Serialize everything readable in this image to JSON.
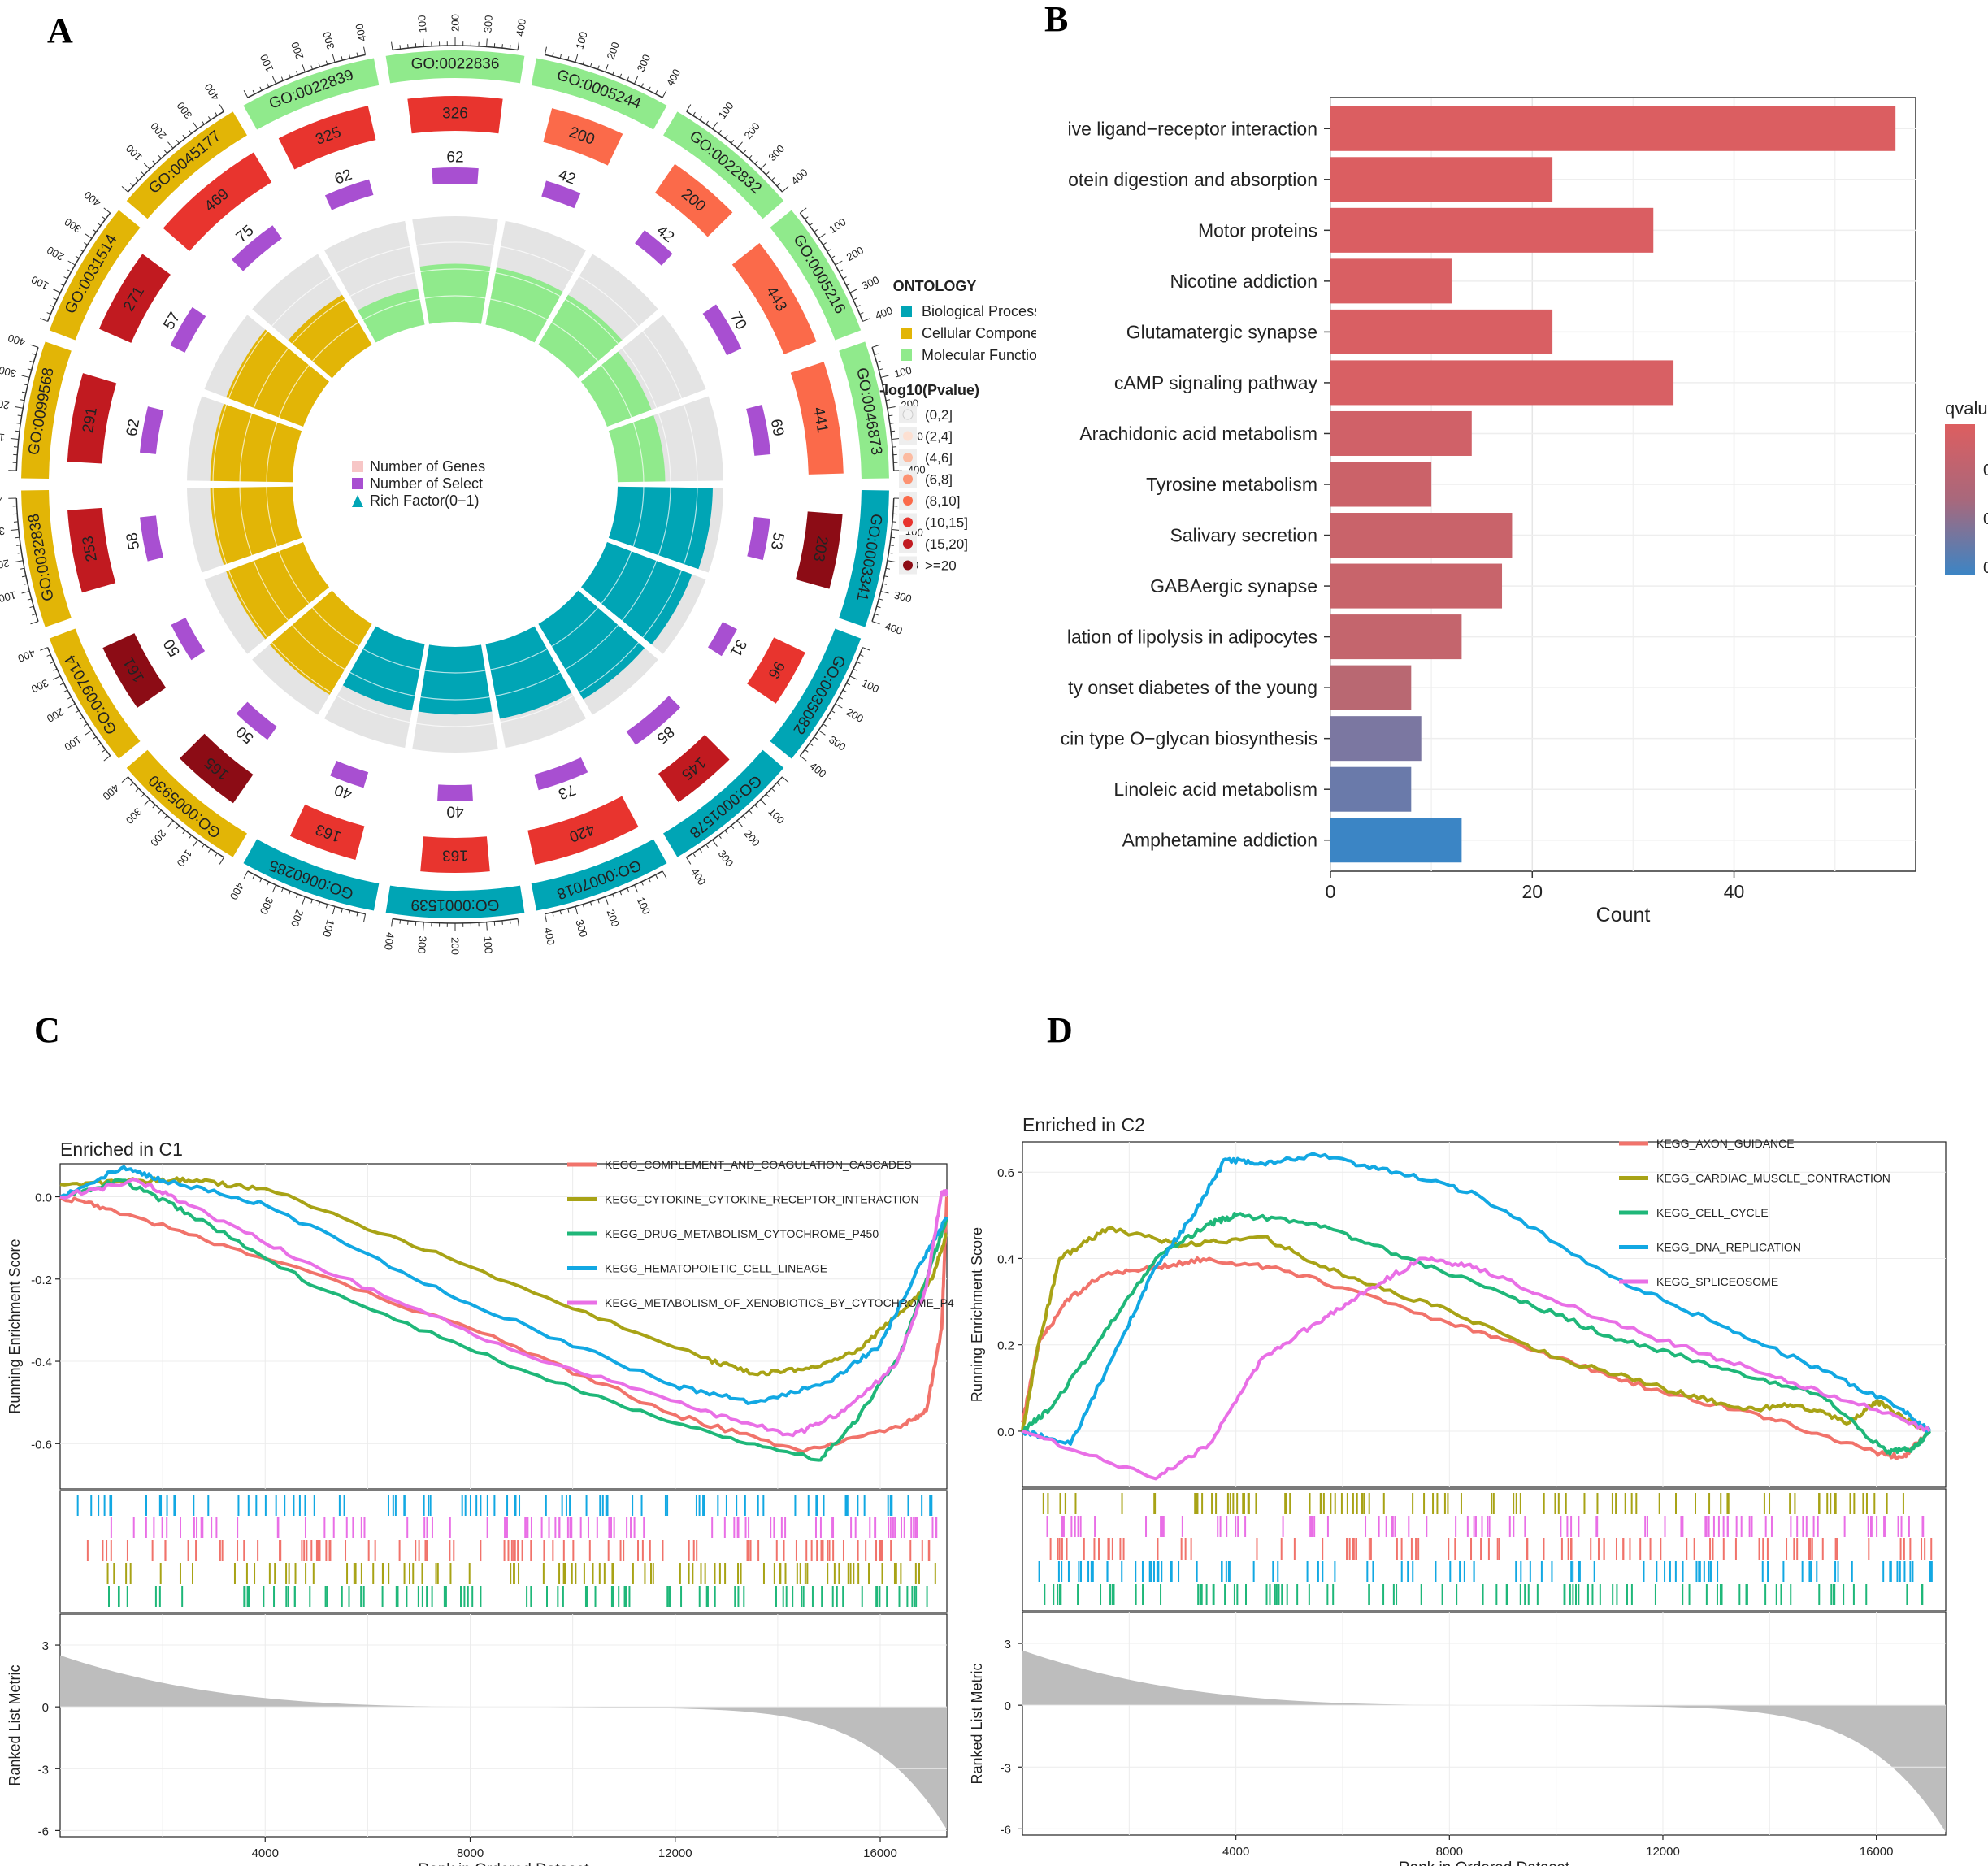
{
  "panel_labels": [
    "A",
    "B",
    "C",
    "D"
  ],
  "chart_data": [
    {
      "panel": "A",
      "type": "circular",
      "title": "GO enrichment circle plot",
      "outer_ticks": [
        "100",
        "200",
        "300",
        "400"
      ],
      "terms": [
        {
          "id": "GO:0003341",
          "ontology": "Biological Process",
          "genes": 203,
          "select": 53,
          "rich": 0.9,
          "level": 7
        },
        {
          "id": "GO:0035082",
          "ontology": "Biological Process",
          "genes": 96,
          "select": 31,
          "rich": 0.86,
          "level": 5
        },
        {
          "id": "GO:0001578",
          "ontology": "Biological Process",
          "genes": 145,
          "select": 85,
          "rich": 0.83,
          "level": 6
        },
        {
          "id": "GO:0007018",
          "ontology": "Biological Process",
          "genes": 420,
          "select": 73,
          "rich": 0.72,
          "level": 5
        },
        {
          "id": "GO:0001539",
          "ontology": "Biological Process",
          "genes": 163,
          "select": 40,
          "rich": 0.64,
          "level": 5
        },
        {
          "id": "GO:0060285",
          "ontology": "Biological Process",
          "genes": 163,
          "select": 40,
          "rich": 0.64,
          "level": 5
        },
        {
          "id": "GO:0005930",
          "ontology": "Cellular Component",
          "genes": 165,
          "select": 50,
          "rich": 0.78,
          "level": 7
        },
        {
          "id": "GO:0097014",
          "ontology": "Cellular Component",
          "genes": 161,
          "select": 50,
          "rich": 0.78,
          "level": 7
        },
        {
          "id": "GO:0032838",
          "ontology": "Cellular Component",
          "genes": 253,
          "select": 58,
          "rich": 0.78,
          "level": 6
        },
        {
          "id": "GO:0099568",
          "ontology": "Cellular Component",
          "genes": 291,
          "select": 62,
          "rich": 0.78,
          "level": 6
        },
        {
          "id": "GO:0031514",
          "ontology": "Cellular Component",
          "genes": 271,
          "select": 57,
          "rich": 0.78,
          "level": 6
        },
        {
          "id": "GO:0045177",
          "ontology": "Cellular Component",
          "genes": 469,
          "select": 75,
          "rich": 0.55,
          "level": 5
        },
        {
          "id": "GO:0022839",
          "ontology": "Molecular Function",
          "genes": 325,
          "select": 62,
          "rich": 0.35,
          "level": 5
        },
        {
          "id": "GO:0022836",
          "ontology": "Molecular Function",
          "genes": 326,
          "select": 62,
          "rich": 0.55,
          "level": 5
        },
        {
          "id": "GO:0005244",
          "ontology": "Molecular Function",
          "genes": 200,
          "select": 42,
          "rich": 0.55,
          "level": 4
        },
        {
          "id": "GO:0022832",
          "ontology": "Molecular Function",
          "genes": 200,
          "select": 42,
          "rich": 0.55,
          "level": 4
        },
        {
          "id": "GO:0005216",
          "ontology": "Molecular Function",
          "genes": 443,
          "select": 70,
          "rich": 0.45,
          "level": 4
        },
        {
          "id": "GO:0046873",
          "ontology": "Molecular Function",
          "genes": 441,
          "select": 69,
          "rich": 0.45,
          "level": 4
        }
      ],
      "center_legend": [
        "Number of Genes",
        "Number of Select",
        "Rich Factor(0−1)"
      ],
      "legend_ontology_title": "ONTOLOGY",
      "legend_ontology": [
        {
          "label": "Biological Process",
          "color": "#00a5b5"
        },
        {
          "label": "Cellular Component",
          "color": "#e2b506"
        },
        {
          "label": "Molecular Function",
          "color": "#90ea8c"
        }
      ],
      "legend_pvalue_title": "-log10(Pvalue)",
      "legend_pvalue": [
        "(0,2]",
        "(2,4]",
        "(4,6]",
        "(6,8]",
        "(8,10]",
        "(10,15]",
        "(15,20]",
        ">=20"
      ],
      "pvalue_colors": [
        "#f2f2f2",
        "#fde0d2",
        "#fcbba1",
        "#fc9272",
        "#fb6a4a",
        "#e8342e",
        "#c11a20",
        "#8c0c15"
      ],
      "select_color": "#a84fd1"
    },
    {
      "panel": "B",
      "type": "bar",
      "orientation": "horizontal",
      "categories": [
        "ive ligand−receptor interaction",
        "otein digestion and absorption",
        "Motor proteins",
        "Nicotine addiction",
        "Glutamatergic synapse",
        "cAMP signaling pathway",
        "Arachidonic acid metabolism",
        "Tyrosine metabolism",
        "Salivary secretion",
        "GABAergic synapse",
        "lation of lipolysis in adipocytes",
        "ty onset diabetes of the young",
        "cin type O−glycan biosynthesis",
        "Linoleic acid metabolism",
        "Amphetamine addiction"
      ],
      "values": [
        56,
        22,
        32,
        12,
        22,
        34,
        14,
        10,
        18,
        17,
        13,
        8,
        9,
        8,
        13
      ],
      "qvalue_rank": [
        0.0,
        0.02,
        0.03,
        0.05,
        0.06,
        0.07,
        0.2,
        0.26,
        0.28,
        0.3,
        0.33,
        0.42,
        0.72,
        0.82,
        1.0
      ],
      "bar_colors": [
        "#db5e61",
        "#db5e61",
        "#da5e62",
        "#d95f63",
        "#d95f63",
        "#d86064",
        "#d06168",
        "#cb6269",
        "#c9636a",
        "#c8646b",
        "#c4656d",
        "#b96872",
        "#7b77a1",
        "#6a7aaa",
        "#3b85c5"
      ],
      "xlabel": "Count",
      "xticks": [
        "0",
        "20",
        "40"
      ],
      "xlim": [
        0,
        58
      ],
      "legend_title": "qvalu",
      "legend_ticks": [
        "0",
        "0",
        "0"
      ]
    },
    {
      "panel": "C",
      "type": "line",
      "title": "Enriched in C1",
      "ylabel": "Running Enrichment Score",
      "yticks": [
        "0.0",
        "-0.2",
        "-0.4",
        "-0.6"
      ],
      "ylim": [
        -0.71,
        0.08
      ],
      "xlim": [
        0,
        17300
      ],
      "x_label": "Rank in Ordered Dataset",
      "xticks": [
        "4000",
        "8000",
        "12000",
        "16000"
      ],
      "metric_label": "Ranked List Metric",
      "metric_yticks": [
        "3",
        "0",
        "-3",
        "-6"
      ],
      "metric_ylim": [
        -6.3,
        4.5
      ],
      "series": [
        {
          "name": "KEGG_COMPLEMENT_AND_COAGULATION_CASCADES",
          "color": "#f1736b",
          "points": [
            [
              0,
              0.0
            ],
            [
              1000,
              -0.03
            ],
            [
              4000,
              -0.15
            ],
            [
              8000,
              -0.32
            ],
            [
              12000,
              -0.53
            ],
            [
              14500,
              -0.62
            ],
            [
              16400,
              -0.56
            ],
            [
              16900,
              -0.52
            ],
            [
              17200,
              -0.32
            ],
            [
              17300,
              0.0
            ]
          ]
        },
        {
          "name": "KEGG_CYTOKINE_CYTOKINE_RECEPTOR_INTERACTION",
          "color": "#a8a316",
          "points": [
            [
              0,
              0.03
            ],
            [
              1500,
              0.04
            ],
            [
              2500,
              0.04
            ],
            [
              4000,
              0.02
            ],
            [
              8000,
              -0.17
            ],
            [
              12500,
              -0.39
            ],
            [
              13500,
              -0.43
            ],
            [
              14500,
              -0.42
            ],
            [
              15500,
              -0.38
            ],
            [
              16500,
              -0.27
            ],
            [
              17000,
              -0.2
            ],
            [
              17300,
              -0.09
            ]
          ]
        },
        {
          "name": "KEGG_DRUG_METABOLISM_CYTOCHROME_P450",
          "color": "#1fb779",
          "points": [
            [
              0,
              0.0
            ],
            [
              1200,
              0.04
            ],
            [
              2500,
              -0.04
            ],
            [
              5000,
              -0.22
            ],
            [
              9000,
              -0.42
            ],
            [
              12000,
              -0.55
            ],
            [
              14800,
              -0.64
            ],
            [
              15500,
              -0.55
            ],
            [
              16400,
              -0.38
            ],
            [
              16900,
              -0.2
            ],
            [
              17300,
              -0.05
            ]
          ]
        },
        {
          "name": "KEGG_HEMATOPOIETIC_CELL_LINEAGE",
          "color": "#12a8e3",
          "points": [
            [
              0,
              0.0
            ],
            [
              1200,
              0.07
            ],
            [
              2000,
              0.04
            ],
            [
              4000,
              -0.02
            ],
            [
              8000,
              -0.26
            ],
            [
              12000,
              -0.46
            ],
            [
              13500,
              -0.5
            ],
            [
              15000,
              -0.45
            ],
            [
              16000,
              -0.36
            ],
            [
              16800,
              -0.16
            ],
            [
              17300,
              -0.05
            ]
          ]
        },
        {
          "name": "KEGG_METABOLISM_OF_XENOBIOTICS_BY_CYTOCHROME_P4",
          "color": "#e96fe6",
          "points": [
            [
              0,
              0.0
            ],
            [
              1500,
              0.04
            ],
            [
              2500,
              -0.02
            ],
            [
              5000,
              -0.17
            ],
            [
              9000,
              -0.38
            ],
            [
              12500,
              -0.52
            ],
            [
              14300,
              -0.58
            ],
            [
              15300,
              -0.52
            ],
            [
              16300,
              -0.41
            ],
            [
              16900,
              -0.22
            ],
            [
              17200,
              0.01
            ],
            [
              17300,
              0.01
            ]
          ]
        }
      ],
      "hits_rows": 5,
      "metric_start": 3.0,
      "metric_end": -5.8
    },
    {
      "panel": "D",
      "type": "line",
      "title": "Enriched in C2",
      "ylabel": "Running Enrichment Score",
      "yticks": [
        "0.0",
        "0.2",
        "0.4",
        "0.6"
      ],
      "ylim": [
        -0.13,
        0.67
      ],
      "xlim": [
        0,
        17300
      ],
      "x_label": "Rank in Ordered Dataset",
      "xticks": [
        "4000",
        "8000",
        "12000",
        "16000"
      ],
      "metric_label": "Ranked List Metric",
      "metric_yticks": [
        "3",
        "0",
        "-3",
        "-6"
      ],
      "metric_ylim": [
        -6.3,
        4.5
      ],
      "series": [
        {
          "name": "KEGG_AXON_GUIDANCE",
          "color": "#f1736b",
          "points": [
            [
              0,
              0.02
            ],
            [
              300,
              0.2
            ],
            [
              800,
              0.3
            ],
            [
              1500,
              0.36
            ],
            [
              2500,
              0.38
            ],
            [
              3500,
              0.4
            ],
            [
              5000,
              0.37
            ],
            [
              8000,
              0.25
            ],
            [
              10000,
              0.17
            ],
            [
              12000,
              0.09
            ],
            [
              14000,
              0.03
            ],
            [
              16000,
              -0.05
            ],
            [
              16500,
              -0.06
            ],
            [
              17000,
              0.0
            ]
          ]
        },
        {
          "name": "KEGG_CARDIAC_MUSCLE_CONTRACTION",
          "color": "#a8a316",
          "points": [
            [
              0,
              0.0
            ],
            [
              300,
              0.2
            ],
            [
              700,
              0.4
            ],
            [
              1600,
              0.47
            ],
            [
              3000,
              0.43
            ],
            [
              4500,
              0.45
            ],
            [
              6000,
              0.36
            ],
            [
              8000,
              0.28
            ],
            [
              10000,
              0.17
            ],
            [
              12000,
              0.1
            ],
            [
              13500,
              0.05
            ],
            [
              14500,
              0.06
            ],
            [
              15500,
              0.02
            ],
            [
              16000,
              0.07
            ],
            [
              16500,
              0.03
            ],
            [
              17000,
              0.0
            ]
          ]
        },
        {
          "name": "KEGG_CELL_CYCLE",
          "color": "#1fb779",
          "points": [
            [
              0,
              0.0
            ],
            [
              500,
              0.05
            ],
            [
              1500,
              0.22
            ],
            [
              2500,
              0.4
            ],
            [
              3500,
              0.48
            ],
            [
              4000,
              0.5
            ],
            [
              5500,
              0.48
            ],
            [
              7000,
              0.41
            ],
            [
              9000,
              0.32
            ],
            [
              11000,
              0.22
            ],
            [
              13000,
              0.15
            ],
            [
              15000,
              0.08
            ],
            [
              16200,
              -0.05
            ],
            [
              16700,
              -0.04
            ],
            [
              17000,
              0.0
            ]
          ]
        },
        {
          "name": "KEGG_DNA_REPLICATION",
          "color": "#12a8e3",
          "points": [
            [
              0,
              0.0
            ],
            [
              900,
              -0.03
            ],
            [
              1800,
              0.2
            ],
            [
              2500,
              0.38
            ],
            [
              3200,
              0.5
            ],
            [
              3800,
              0.63
            ],
            [
              4500,
              0.62
            ],
            [
              5500,
              0.64
            ],
            [
              7000,
              0.6
            ],
            [
              8500,
              0.55
            ],
            [
              11000,
              0.36
            ],
            [
              13000,
              0.25
            ],
            [
              15000,
              0.14
            ],
            [
              16500,
              0.05
            ],
            [
              17000,
              0.0
            ]
          ]
        },
        {
          "name": "KEGG_SPLICEOSOME",
          "color": "#e96fe6",
          "points": [
            [
              0,
              0.0
            ],
            [
              2500,
              -0.11
            ],
            [
              3500,
              -0.03
            ],
            [
              4500,
              0.17
            ],
            [
              5500,
              0.25
            ],
            [
              6500,
              0.33
            ],
            [
              7500,
              0.4
            ],
            [
              8500,
              0.38
            ],
            [
              10000,
              0.3
            ],
            [
              12000,
              0.21
            ],
            [
              14000,
              0.13
            ],
            [
              16000,
              0.05
            ],
            [
              17000,
              0.0
            ]
          ]
        }
      ],
      "hits_rows": 5,
      "metric_start": 3.2,
      "metric_end": -6.0
    }
  ]
}
